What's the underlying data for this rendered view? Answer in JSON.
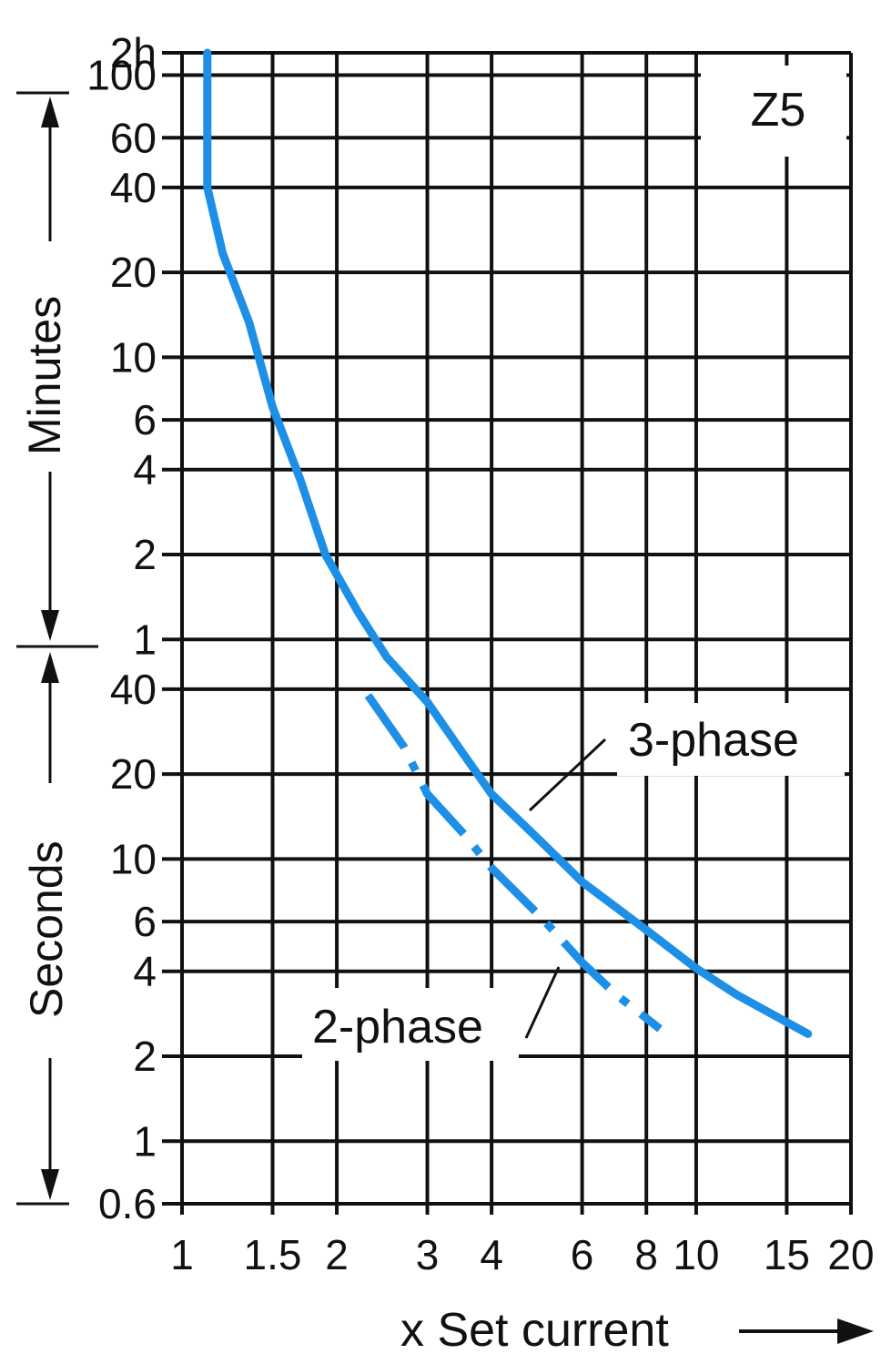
{
  "chart_data": {
    "type": "line",
    "title": "",
    "annotation_box": "Z5",
    "xlabel": "x Set current",
    "x_scale": "log",
    "y_scale": "log",
    "xlim": [
      1,
      20
    ],
    "ylim_seconds": [
      0.6,
      7200
    ],
    "x_ticks": [
      {
        "value": 1,
        "label": "1"
      },
      {
        "value": 1.5,
        "label": "1.5"
      },
      {
        "value": 2,
        "label": "2"
      },
      {
        "value": 3,
        "label": "3"
      },
      {
        "value": 4,
        "label": "4"
      },
      {
        "value": 6,
        "label": "6"
      },
      {
        "value": 8,
        "label": "8"
      },
      {
        "value": 10,
        "label": "10"
      },
      {
        "value": 15,
        "label": "15"
      },
      {
        "value": 20,
        "label": "20"
      }
    ],
    "y_ticks": [
      {
        "seconds": 7200,
        "label": "2h"
      },
      {
        "seconds": 6000,
        "label": "100"
      },
      {
        "seconds": 3600,
        "label": "60"
      },
      {
        "seconds": 2400,
        "label": "40"
      },
      {
        "seconds": 1200,
        "label": "20"
      },
      {
        "seconds": 600,
        "label": "10"
      },
      {
        "seconds": 360,
        "label": "6"
      },
      {
        "seconds": 240,
        "label": "4"
      },
      {
        "seconds": 120,
        "label": "2"
      },
      {
        "seconds": 60,
        "label": "1"
      },
      {
        "seconds": 40,
        "label": "40"
      },
      {
        "seconds": 20,
        "label": "20"
      },
      {
        "seconds": 10,
        "label": "10"
      },
      {
        "seconds": 6,
        "label": "6"
      },
      {
        "seconds": 4,
        "label": "4"
      },
      {
        "seconds": 2,
        "label": "2"
      },
      {
        "seconds": 1,
        "label": "1"
      },
      {
        "seconds": 0.6,
        "label": "0.6"
      }
    ],
    "y_unit_labels": {
      "minutes": "Minutes",
      "seconds": "Seconds"
    },
    "series": [
      {
        "name": "3-phase",
        "style": "solid",
        "color": "#1e8fe6",
        "points": [
          [
            1.12,
            7200
          ],
          [
            1.12,
            4000
          ],
          [
            1.12,
            2400
          ],
          [
            1.2,
            1400
          ],
          [
            1.35,
            800
          ],
          [
            1.5,
            400
          ],
          [
            1.7,
            220
          ],
          [
            1.9,
            120
          ],
          [
            2.2,
            75
          ],
          [
            2.5,
            52
          ],
          [
            3.0,
            36
          ],
          [
            3.5,
            24
          ],
          [
            4.0,
            17
          ],
          [
            5.0,
            11.5
          ],
          [
            6.0,
            8.3
          ],
          [
            8.0,
            5.6
          ],
          [
            10.0,
            4.1
          ],
          [
            12.0,
            3.3
          ],
          [
            16.5,
            2.4
          ]
        ]
      },
      {
        "name": "2-phase",
        "style": "dash-dot",
        "color": "#1e8fe6",
        "points": [
          [
            2.3,
            38
          ],
          [
            2.7,
            25
          ],
          [
            3.0,
            17
          ],
          [
            3.5,
            12.5
          ],
          [
            4.0,
            9.3
          ],
          [
            5.0,
            6.2
          ],
          [
            6.0,
            4.3
          ],
          [
            7.0,
            3.3
          ],
          [
            8.5,
            2.5
          ]
        ]
      }
    ]
  }
}
